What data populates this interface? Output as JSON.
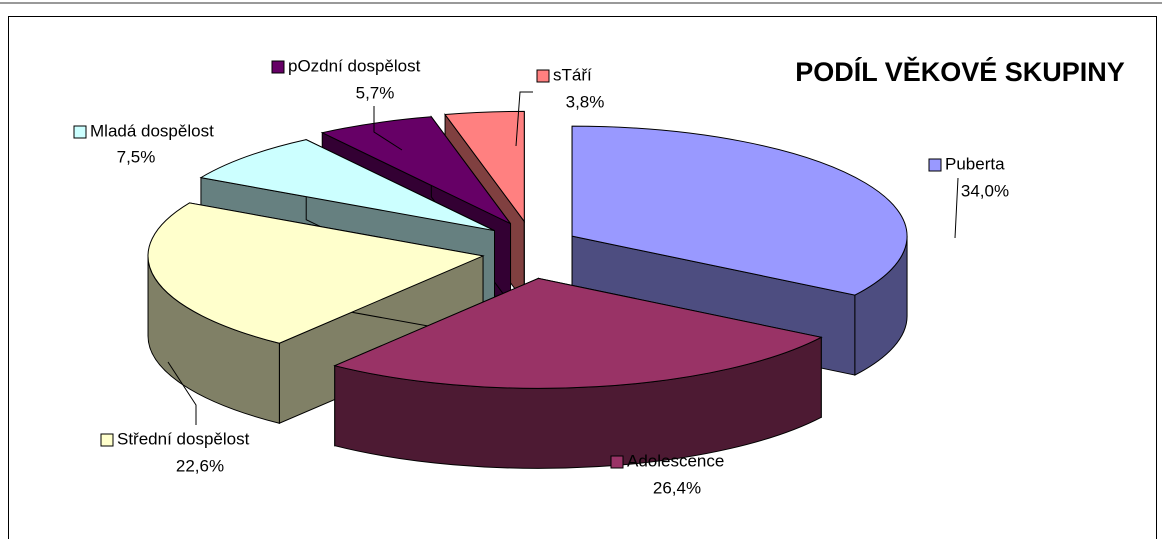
{
  "chart_data": {
    "type": "pie3d",
    "title": "PODÍL VĚKOVÉ SKUPINY",
    "categories": [
      "Puberta",
      "Adolescence",
      "Střední dospělost",
      "Mladá dospělost",
      "pOzdní dospělost",
      "sTáří"
    ],
    "values": [
      34.0,
      26.4,
      22.6,
      7.5,
      5.7,
      3.8
    ],
    "value_labels": [
      "34,0%",
      "26,4%",
      "22,6%",
      "7,5%",
      "5,7%",
      "3,8%"
    ],
    "colors": [
      "#9999ff",
      "#993366",
      "#ffffcc",
      "#ccffff",
      "#660066",
      "#ff8080"
    ]
  }
}
